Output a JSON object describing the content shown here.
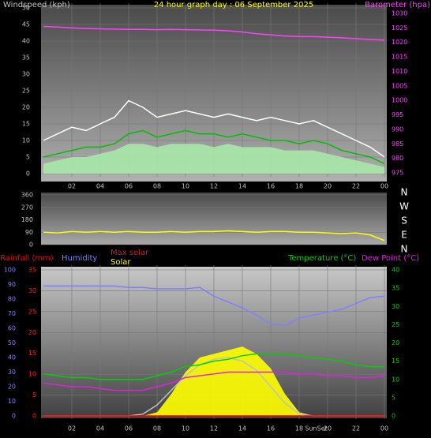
{
  "chart_data": [
    {
      "type": "line",
      "title": "24 hour graph day : 06 September 2025",
      "y_label": "Windspeed (kph)",
      "y2_label": "Barometer (hpa)",
      "x": [
        0,
        1,
        2,
        3,
        4,
        5,
        6,
        7,
        8,
        9,
        10,
        11,
        12,
        13,
        14,
        15,
        16,
        17,
        18,
        19,
        20,
        21,
        22,
        23,
        24
      ],
      "xlim": [
        0,
        24
      ],
      "xticks": [
        {
          "value": 2,
          "label": "02"
        },
        {
          "value": 4,
          "label": "04"
        },
        {
          "value": 6,
          "label": "06"
        },
        {
          "value": 8,
          "label": "08"
        },
        10,
        12,
        14,
        16,
        18,
        20,
        22,
        {
          "value": 24,
          "label": "00"
        }
      ],
      "ylim": [
        0,
        50
      ],
      "yticks": [
        0,
        5,
        10,
        15,
        20,
        25,
        30,
        35,
        40,
        45,
        50
      ],
      "y2lim": [
        975,
        1030
      ],
      "y2ticks": [
        975,
        980,
        985,
        990,
        995,
        1000,
        1005,
        1010,
        1015,
        1020,
        1025,
        1030
      ],
      "grid": true,
      "series": [
        {
          "color": "#a8e8a8",
          "fill": true,
          "values": [
            3,
            4,
            5,
            5,
            6,
            7,
            9,
            9,
            8,
            9,
            9,
            9,
            8,
            9,
            8,
            8,
            8,
            7,
            7,
            7,
            6,
            5,
            4,
            3,
            2
          ]
        },
        {
          "color": "#ffffff",
          "values": [
            10,
            12,
            14,
            13,
            15,
            17,
            22,
            20,
            17,
            18,
            19,
            18,
            17,
            18,
            17,
            16,
            17,
            16,
            15,
            16,
            14,
            12,
            10,
            8,
            5
          ]
        },
        {
          "color": "#00c000",
          "values": [
            5,
            6,
            7,
            8,
            8,
            9,
            12,
            13,
            11,
            12,
            13,
            12,
            12,
            11,
            12,
            11,
            10,
            10,
            9,
            10,
            9,
            7,
            6,
            5,
            3
          ]
        },
        {
          "color": "#ff40ff",
          "axis": "y2",
          "values": [
            1025.5,
            1025.3,
            1025,
            1024.8,
            1024.7,
            1024.6,
            1024.5,
            1024.5,
            1024.4,
            1024.5,
            1024.4,
            1024.3,
            1024.2,
            1024,
            1023.6,
            1023,
            1022.6,
            1022.2,
            1022,
            1022,
            1021.8,
            1021.6,
            1021.3,
            1021,
            1020.8
          ]
        }
      ]
    },
    {
      "type": "line",
      "x": [
        0,
        1,
        2,
        3,
        4,
        5,
        6,
        7,
        8,
        9,
        10,
        11,
        12,
        13,
        14,
        15,
        16,
        17,
        18,
        19,
        20,
        21,
        22,
        23,
        24
      ],
      "xlim": [
        0,
        24
      ],
      "ylim": [
        0,
        360
      ],
      "yticks": [
        0,
        90,
        180,
        270,
        360
      ],
      "compass": [
        "N",
        "E",
        "S",
        "W",
        "N"
      ],
      "grid": true,
      "series": [
        {
          "color": "#ffff00",
          "values": [
            90,
            85,
            95,
            90,
            95,
            90,
            95,
            90,
            90,
            95,
            90,
            95,
            95,
            100,
            95,
            90,
            95,
            95,
            90,
            90,
            85,
            80,
            85,
            70,
            30
          ]
        }
      ]
    },
    {
      "type": "line",
      "x": [
        0,
        1,
        2,
        3,
        4,
        5,
        6,
        7,
        8,
        9,
        10,
        11,
        12,
        13,
        14,
        15,
        16,
        17,
        18,
        19,
        20,
        21,
        22,
        23,
        24
      ],
      "xlim": [
        0,
        24
      ],
      "xticks": [
        {
          "value": 2,
          "label": "02"
        },
        {
          "value": 4,
          "label": "04"
        },
        {
          "value": 6,
          "label": "06"
        },
        {
          "value": 8,
          "label": "08"
        },
        10,
        12,
        14,
        16,
        18,
        20,
        22,
        {
          "value": 24,
          "label": "00"
        }
      ],
      "ylim": [
        0,
        35
      ],
      "yticks": [
        0,
        5,
        10,
        15,
        20,
        25,
        30,
        35
      ],
      "y2lim": [
        0,
        40
      ],
      "y2ticks": [
        0,
        5,
        10,
        15,
        20,
        25,
        30,
        35,
        40
      ],
      "y3lim": [
        0,
        100
      ],
      "y3ticks": [
        0,
        10,
        20,
        30,
        40,
        50,
        60,
        70,
        80,
        90,
        100
      ],
      "annotation": "SunSet",
      "annotation_x": 19.2,
      "grid": true,
      "series": [
        {
          "name": "Solar",
          "color": "#ffff00",
          "fill": true,
          "axis": "y2",
          "values": [
            0,
            0,
            0,
            0,
            0,
            0,
            0,
            0,
            1,
            6,
            12,
            16,
            17,
            18,
            19,
            17,
            13,
            6,
            1,
            0,
            0,
            0,
            0,
            0,
            0
          ]
        },
        {
          "name": "Max solar",
          "color": "#c0c0c0",
          "axis": "y2",
          "values": [
            0,
            0,
            0,
            0,
            0,
            0,
            0,
            0.5,
            3,
            7,
            11,
            14,
            15.5,
            16,
            15,
            12.5,
            8,
            3.5,
            0.5,
            0,
            0,
            0,
            0,
            0,
            0
          ]
        },
        {
          "name": "Rainfall (mm)",
          "color": "#ff0000",
          "values": [
            0,
            0,
            0,
            0,
            0,
            0,
            0,
            0,
            0,
            0,
            0,
            0,
            0,
            0,
            0,
            0,
            0,
            0,
            0,
            0,
            0,
            0,
            0,
            0,
            0
          ]
        },
        {
          "name": "Humidity",
          "color": "#8080ff",
          "axis": "y3",
          "values": [
            89,
            89,
            89,
            89,
            89,
            89,
            88,
            88,
            87,
            87,
            87,
            88,
            82,
            78,
            74,
            69,
            63,
            62,
            67,
            69,
            71,
            73,
            77,
            81,
            82
          ]
        },
        {
          "name": "Temperature (°C)",
          "color": "#00d000",
          "axis": "y2",
          "values": [
            11.5,
            11,
            10.5,
            10.5,
            10,
            10,
            10,
            10,
            11,
            12,
            13.5,
            14,
            15,
            15.5,
            16.5,
            17,
            17,
            17,
            16.5,
            16,
            15.5,
            15,
            14,
            13.5,
            13.5
          ]
        },
        {
          "name": "Dew Point (°C)",
          "color": "#e020e0",
          "axis": "y2",
          "values": [
            9,
            8.5,
            8,
            8,
            7.5,
            7,
            7,
            7,
            8,
            9,
            10.5,
            11,
            11.5,
            12,
            12,
            12,
            12,
            12,
            11.5,
            11.5,
            11,
            11,
            10.5,
            10.5,
            11
          ]
        }
      ]
    }
  ]
}
